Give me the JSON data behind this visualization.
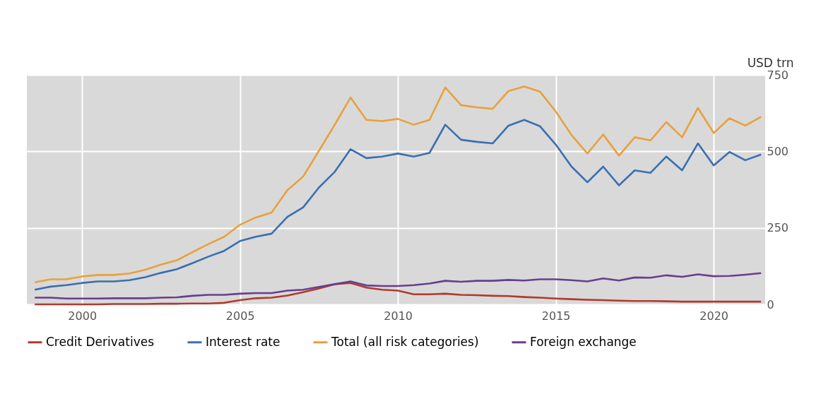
{
  "chart_data": {
    "type": "line",
    "ylabel": "USD trn",
    "x": [
      1998.5,
      1999,
      1999.5,
      2000,
      2000.5,
      2001,
      2001.5,
      2002,
      2002.5,
      2003,
      2003.5,
      2004,
      2004.5,
      2005,
      2005.5,
      2006,
      2006.5,
      2007,
      2007.5,
      2008,
      2008.5,
      2009,
      2009.5,
      2010,
      2010.5,
      2011,
      2011.5,
      2012,
      2012.5,
      2013,
      2013.5,
      2014,
      2014.5,
      2015,
      2015.5,
      2016,
      2016.5,
      2017,
      2017.5,
      2018,
      2018.5,
      2019,
      2019.5,
      2020,
      2020.5,
      2021,
      2021.5
    ],
    "series": [
      {
        "name": "Credit Derivatives",
        "color": "#b03a2e",
        "values": [
          0,
          0,
          0,
          0,
          0,
          1,
          1,
          1,
          2,
          2,
          3,
          3,
          5,
          14,
          20,
          22,
          29,
          40,
          52,
          66,
          70,
          55,
          48,
          45,
          33,
          33,
          35,
          31,
          30,
          28,
          27,
          24,
          22,
          19,
          17,
          15,
          14,
          12,
          11,
          11,
          10,
          9,
          9,
          9,
          9,
          9,
          9
        ]
      },
      {
        "name": "Interest rate",
        "color": "#3a6fb0",
        "values": [
          48,
          58,
          63,
          70,
          75,
          75,
          79,
          89,
          103,
          115,
          135,
          156,
          175,
          207,
          221,
          231,
          286,
          317,
          382,
          433,
          507,
          478,
          483,
          493,
          483,
          495,
          587,
          538,
          531,
          526,
          584,
          603,
          582,
          522,
          450,
          399,
          450,
          389,
          438,
          430,
          483,
          438,
          526,
          454,
          498,
          471,
          490
        ]
      },
      {
        "name": "Total (all risk categories)",
        "color": "#e8a13a",
        "values": [
          72,
          82,
          82,
          91,
          96,
          96,
          101,
          113,
          130,
          144,
          171,
          197,
          221,
          260,
          284,
          300,
          373,
          418,
          502,
          587,
          676,
          603,
          599,
          606,
          587,
          603,
          709,
          651,
          644,
          639,
          697,
          712,
          695,
          630,
          553,
          493,
          555,
          486,
          546,
          536,
          596,
          546,
          642,
          560,
          608,
          584,
          613
        ]
      },
      {
        "name": "Foreign exchange",
        "color": "#6a3d8f",
        "values": [
          22,
          22,
          19,
          19,
          19,
          20,
          20,
          20,
          22,
          23,
          28,
          31,
          31,
          35,
          37,
          37,
          45,
          48,
          57,
          66,
          75,
          62,
          60,
          60,
          63,
          68,
          77,
          74,
          77,
          77,
          80,
          78,
          82,
          82,
          79,
          75,
          85,
          78,
          88,
          87,
          95,
          90,
          98,
          92,
          93,
          97,
          102
        ]
      }
    ],
    "xlim": [
      1998.25,
      2021.63
    ],
    "xticks": [
      2000,
      2005,
      2010,
      2015,
      2020
    ],
    "ylim": [
      0,
      750
    ],
    "yticks": [
      0,
      250,
      500,
      750
    ],
    "grid": true,
    "legend": "bottom",
    "line_style": "solid"
  }
}
